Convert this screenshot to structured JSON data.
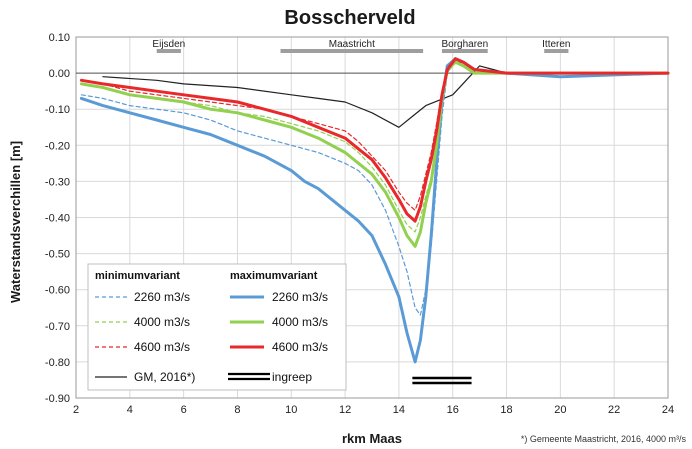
{
  "chart_data": {
    "type": "line",
    "title": "Bosscherveld",
    "xlabel": "rkm Maas",
    "ylabel": "Waterstandsverchillen [m]",
    "xlim": [
      2,
      24
    ],
    "ylim": [
      -0.9,
      0.1
    ],
    "xticks": [
      "2",
      "4",
      "6",
      "8",
      "10",
      "12",
      "14",
      "16",
      "18",
      "20",
      "22",
      "24"
    ],
    "yticks": [
      "0.10",
      "0.00",
      "-0.10",
      "-0.20",
      "-0.30",
      "-0.40",
      "-0.50",
      "-0.60",
      "-0.70",
      "-0.80",
      "-0.90"
    ],
    "grid": true,
    "footnote": "*) Gemeente Maastricht, 2016, 4000 m³/s",
    "places": [
      {
        "name": "Eijsden",
        "x0": 5.0,
        "x1": 5.9
      },
      {
        "name": "Maastricht",
        "x0": 9.6,
        "x1": 14.9
      },
      {
        "name": "Borgharen",
        "x0": 15.6,
        "x1": 17.3
      },
      {
        "name": "Itteren",
        "x0": 19.4,
        "x1": 20.3
      }
    ],
    "legend": {
      "heading_min": "minimumvariant",
      "heading_max": "maximumvariant",
      "placement": "bottom-left",
      "gm_label": "GM, 2016*)",
      "ingreep_label": "ingreep"
    },
    "ingreep": {
      "x0": 14.5,
      "x1": 16.7
    },
    "series": [
      {
        "name": "2260 m3/s",
        "variant": "minimumvariant",
        "color": "#5b9bd5",
        "dash": true,
        "points": [
          [
            2.2,
            -0.06
          ],
          [
            3,
            -0.07
          ],
          [
            4,
            -0.09
          ],
          [
            5,
            -0.1
          ],
          [
            6,
            -0.11
          ],
          [
            7,
            -0.13
          ],
          [
            8,
            -0.16
          ],
          [
            9,
            -0.18
          ],
          [
            10,
            -0.2
          ],
          [
            11,
            -0.22
          ],
          [
            12,
            -0.25
          ],
          [
            12.5,
            -0.27
          ],
          [
            13,
            -0.31
          ],
          [
            13.5,
            -0.38
          ],
          [
            14,
            -0.48
          ],
          [
            14.3,
            -0.55
          ],
          [
            14.6,
            -0.65
          ],
          [
            14.8,
            -0.67
          ],
          [
            15.0,
            -0.6
          ],
          [
            15.2,
            -0.48
          ],
          [
            15.4,
            -0.3
          ],
          [
            15.6,
            -0.12
          ],
          [
            15.8,
            0.0
          ],
          [
            16.1,
            0.04
          ],
          [
            16.4,
            0.02
          ],
          [
            16.8,
            0.0
          ],
          [
            18,
            0.0
          ],
          [
            20,
            0.0
          ],
          [
            24,
            0.0
          ]
        ]
      },
      {
        "name": "4000 m3/s",
        "variant": "minimumvariant",
        "color": "#92d050",
        "dash": true,
        "points": [
          [
            2.2,
            -0.03
          ],
          [
            3,
            -0.04
          ],
          [
            4,
            -0.06
          ],
          [
            5,
            -0.07
          ],
          [
            6,
            -0.08
          ],
          [
            7,
            -0.09
          ],
          [
            8,
            -0.11
          ],
          [
            9,
            -0.12
          ],
          [
            10,
            -0.14
          ],
          [
            11,
            -0.16
          ],
          [
            12,
            -0.19
          ],
          [
            12.5,
            -0.22
          ],
          [
            13,
            -0.26
          ],
          [
            13.5,
            -0.31
          ],
          [
            14,
            -0.38
          ],
          [
            14.3,
            -0.42
          ],
          [
            14.6,
            -0.44
          ],
          [
            14.8,
            -0.4
          ],
          [
            15.0,
            -0.34
          ],
          [
            15.2,
            -0.29
          ],
          [
            15.4,
            -0.18
          ],
          [
            15.6,
            -0.07
          ],
          [
            15.8,
            0.0
          ],
          [
            16.1,
            0.03
          ],
          [
            16.4,
            0.02
          ],
          [
            16.8,
            0.0
          ],
          [
            18,
            0.0
          ],
          [
            20,
            0.0
          ],
          [
            24,
            0.0
          ]
        ]
      },
      {
        "name": "4600 m3/s",
        "variant": "minimumvariant",
        "color": "#e8282b",
        "dash": true,
        "points": [
          [
            2.2,
            -0.02
          ],
          [
            3,
            -0.03
          ],
          [
            4,
            -0.05
          ],
          [
            5,
            -0.06
          ],
          [
            6,
            -0.07
          ],
          [
            7,
            -0.08
          ],
          [
            8,
            -0.09
          ],
          [
            9,
            -0.1
          ],
          [
            10,
            -0.12
          ],
          [
            11,
            -0.14
          ],
          [
            12,
            -0.16
          ],
          [
            12.5,
            -0.19
          ],
          [
            13,
            -0.23
          ],
          [
            13.5,
            -0.27
          ],
          [
            14,
            -0.33
          ],
          [
            14.3,
            -0.36
          ],
          [
            14.6,
            -0.38
          ],
          [
            14.8,
            -0.34
          ],
          [
            15.0,
            -0.28
          ],
          [
            15.2,
            -0.22
          ],
          [
            15.4,
            -0.14
          ],
          [
            15.6,
            -0.05
          ],
          [
            15.8,
            0.01
          ],
          [
            16.1,
            0.04
          ],
          [
            16.4,
            0.02
          ],
          [
            16.8,
            0.0
          ],
          [
            18,
            0.0
          ],
          [
            20,
            0.0
          ],
          [
            24,
            0.0
          ]
        ]
      },
      {
        "name": "2260 m3/s",
        "variant": "maximumvariant",
        "color": "#5b9bd5",
        "dash": false,
        "points": [
          [
            2.2,
            -0.07
          ],
          [
            3,
            -0.09
          ],
          [
            4,
            -0.11
          ],
          [
            5,
            -0.13
          ],
          [
            6,
            -0.15
          ],
          [
            7,
            -0.17
          ],
          [
            8,
            -0.2
          ],
          [
            9,
            -0.23
          ],
          [
            10,
            -0.27
          ],
          [
            10.5,
            -0.3
          ],
          [
            11,
            -0.32
          ],
          [
            12,
            -0.38
          ],
          [
            12.5,
            -0.41
          ],
          [
            13,
            -0.45
          ],
          [
            13.5,
            -0.53
          ],
          [
            14,
            -0.62
          ],
          [
            14.3,
            -0.72
          ],
          [
            14.6,
            -0.8
          ],
          [
            14.8,
            -0.74
          ],
          [
            15.0,
            -0.62
          ],
          [
            15.2,
            -0.45
          ],
          [
            15.4,
            -0.25
          ],
          [
            15.6,
            -0.08
          ],
          [
            15.8,
            0.02
          ],
          [
            16.1,
            0.04
          ],
          [
            16.4,
            0.03
          ],
          [
            16.8,
            0.01
          ],
          [
            18,
            0.0
          ],
          [
            20,
            -0.01
          ],
          [
            24,
            0.0
          ]
        ]
      },
      {
        "name": "4000 m3/s",
        "variant": "maximumvariant",
        "color": "#92d050",
        "dash": false,
        "points": [
          [
            2.2,
            -0.03
          ],
          [
            3,
            -0.04
          ],
          [
            4,
            -0.06
          ],
          [
            5,
            -0.07
          ],
          [
            6,
            -0.08
          ],
          [
            7,
            -0.1
          ],
          [
            8,
            -0.11
          ],
          [
            9,
            -0.13
          ],
          [
            10,
            -0.15
          ],
          [
            11,
            -0.18
          ],
          [
            12,
            -0.22
          ],
          [
            12.5,
            -0.25
          ],
          [
            13,
            -0.28
          ],
          [
            13.5,
            -0.33
          ],
          [
            14,
            -0.4
          ],
          [
            14.3,
            -0.45
          ],
          [
            14.6,
            -0.48
          ],
          [
            14.8,
            -0.44
          ],
          [
            15.0,
            -0.36
          ],
          [
            15.2,
            -0.3
          ],
          [
            15.4,
            -0.2
          ],
          [
            15.6,
            -0.07
          ],
          [
            15.8,
            0.01
          ],
          [
            16.1,
            0.03
          ],
          [
            16.4,
            0.02
          ],
          [
            16.8,
            0.0
          ],
          [
            18,
            0.0
          ],
          [
            20,
            0.0
          ],
          [
            24,
            0.0
          ]
        ]
      },
      {
        "name": "4600 m3/s",
        "variant": "maximumvariant",
        "color": "#e8282b",
        "dash": false,
        "points": [
          [
            2.2,
            -0.02
          ],
          [
            3,
            -0.03
          ],
          [
            4,
            -0.04
          ],
          [
            5,
            -0.05
          ],
          [
            6,
            -0.06
          ],
          [
            7,
            -0.07
          ],
          [
            8,
            -0.08
          ],
          [
            9,
            -0.1
          ],
          [
            10,
            -0.12
          ],
          [
            11,
            -0.15
          ],
          [
            12,
            -0.18
          ],
          [
            12.5,
            -0.21
          ],
          [
            13,
            -0.24
          ],
          [
            13.5,
            -0.29
          ],
          [
            14,
            -0.35
          ],
          [
            14.3,
            -0.39
          ],
          [
            14.6,
            -0.41
          ],
          [
            14.8,
            -0.37
          ],
          [
            15.0,
            -0.3
          ],
          [
            15.2,
            -0.24
          ],
          [
            15.4,
            -0.16
          ],
          [
            15.6,
            -0.06
          ],
          [
            15.8,
            0.01
          ],
          [
            16.1,
            0.04
          ],
          [
            16.4,
            0.03
          ],
          [
            16.8,
            0.01
          ],
          [
            18,
            0.0
          ],
          [
            20,
            0.0
          ],
          [
            24,
            0.0
          ]
        ]
      },
      {
        "name": "GM, 2016*)",
        "variant": "reference",
        "color": "#222222",
        "dash": false,
        "points": [
          [
            3,
            -0.01
          ],
          [
            5,
            -0.02
          ],
          [
            6,
            -0.03
          ],
          [
            8,
            -0.04
          ],
          [
            10,
            -0.06
          ],
          [
            11,
            -0.07
          ],
          [
            12,
            -0.08
          ],
          [
            13,
            -0.11
          ],
          [
            14,
            -0.15
          ],
          [
            14.5,
            -0.12
          ],
          [
            15,
            -0.09
          ],
          [
            16,
            -0.06
          ],
          [
            16.5,
            -0.02
          ],
          [
            17,
            0.02
          ],
          [
            17.5,
            0.01
          ],
          [
            18,
            0.0
          ],
          [
            24,
            0.0
          ]
        ]
      }
    ]
  }
}
